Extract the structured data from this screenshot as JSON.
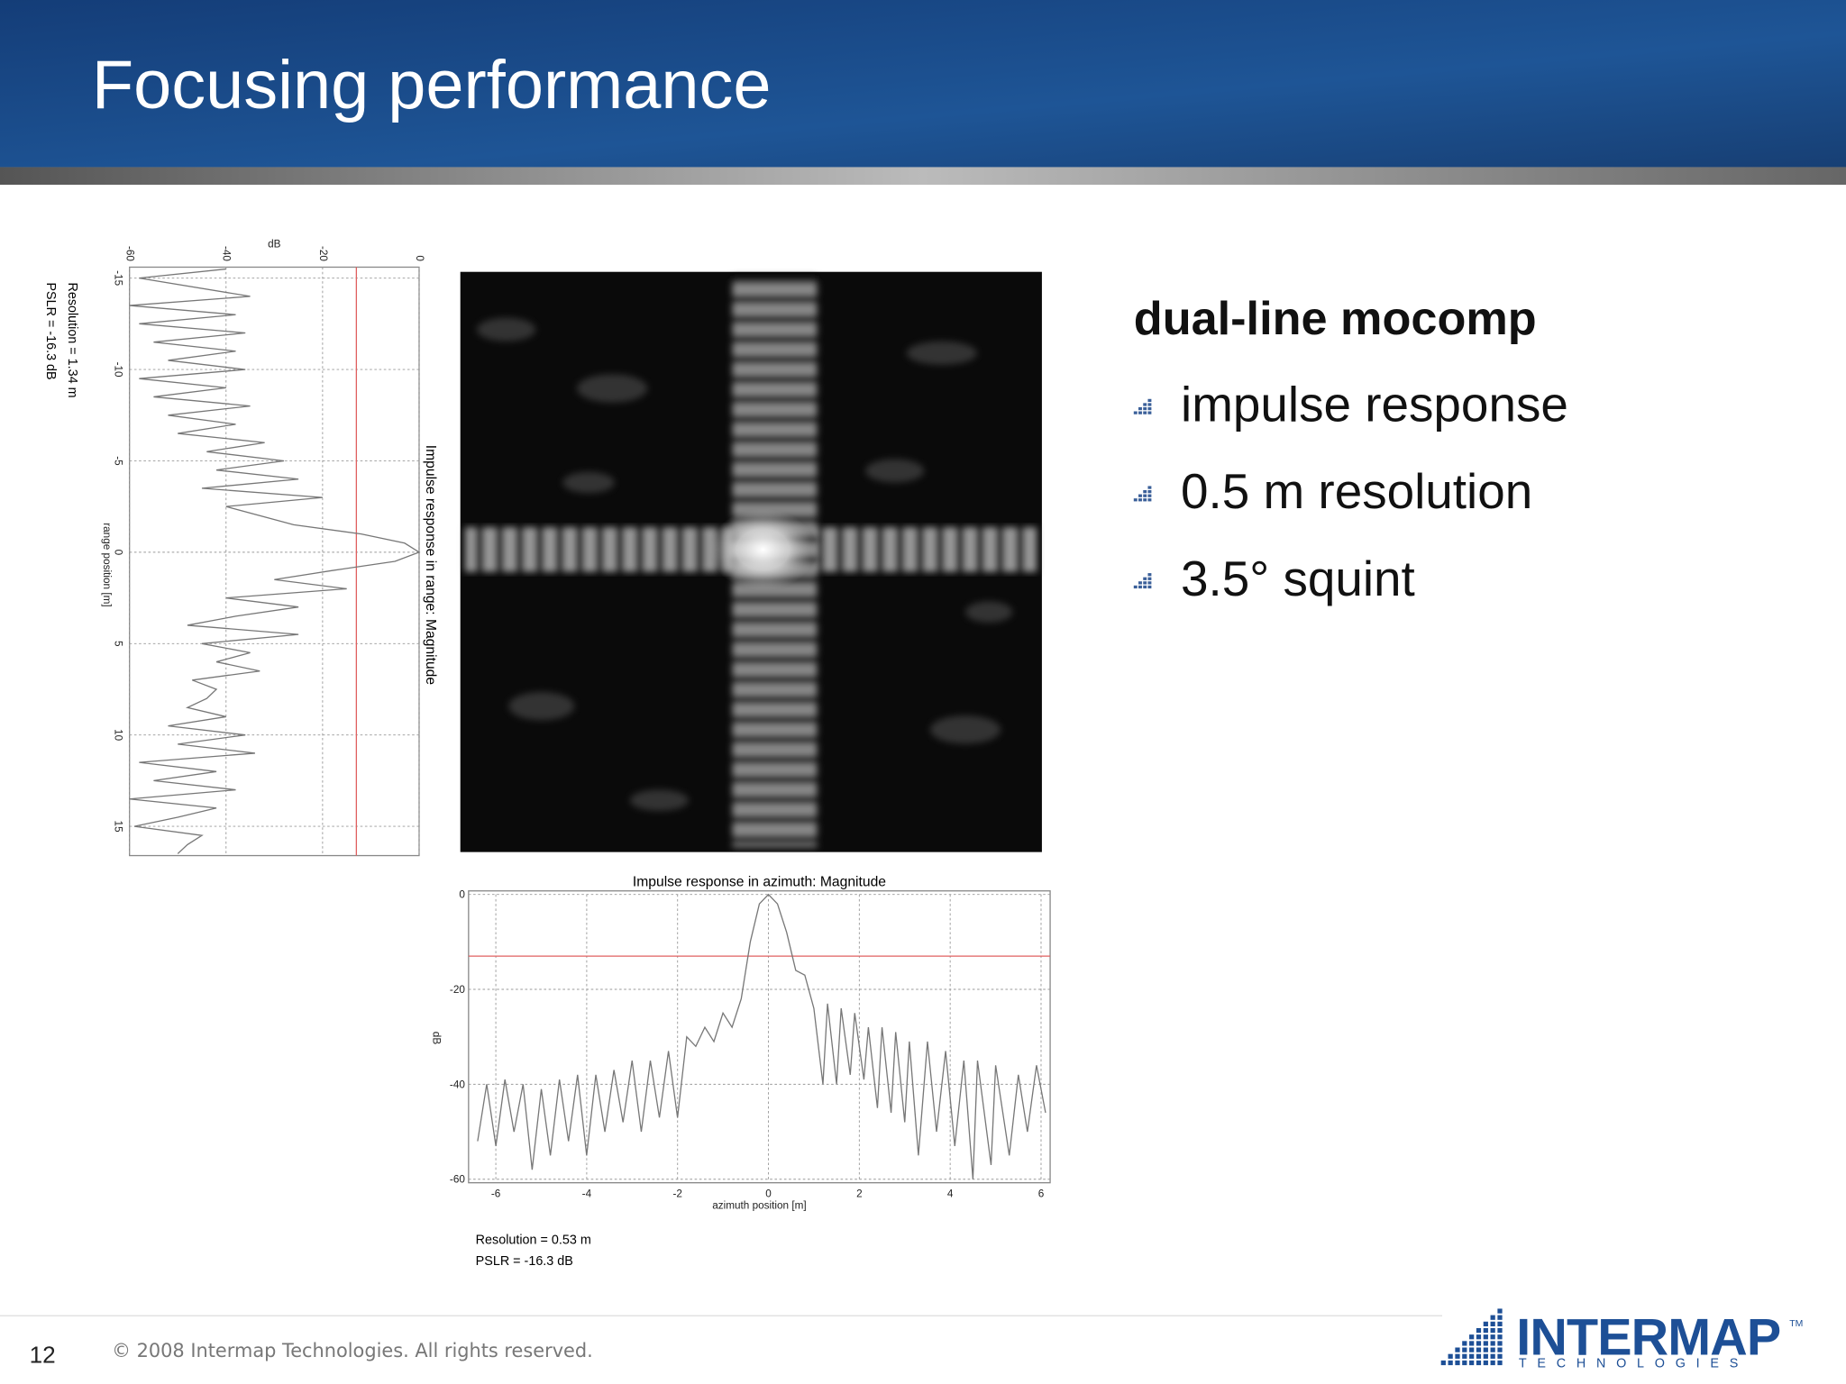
{
  "header": {
    "title": "Focusing performance"
  },
  "bullets": {
    "heading": "dual-line mocomp",
    "items": [
      "impulse response",
      "0.5 m resolution",
      "3.5° squint"
    ]
  },
  "footer": {
    "page": "12",
    "copyright": "© 2008 Intermap Technologies. All rights reserved.",
    "logo": "INTERMAP",
    "logo_sub": "TECHNOLOGIES",
    "trademark": "TM"
  },
  "chart_data": [
    {
      "type": "line",
      "rotated": true,
      "title": "Impulse response in range: Magnitude",
      "xlabel": "range position [m]",
      "ylabel": "dB",
      "xlim": [
        -15.6,
        16.6
      ],
      "ylim": [
        -60,
        0
      ],
      "xticks": [
        -15,
        -10,
        -5,
        0,
        5,
        10,
        15
      ],
      "yticks": [
        -60,
        -40,
        -20,
        0
      ],
      "threshold": -13,
      "threshold_color": "#e06060",
      "color": "#777777",
      "grid": true,
      "annotations": [
        "Resolution = 1.34 m",
        "PSLR = -16.3 dB"
      ],
      "x": [
        -15.5,
        -15,
        -14,
        -13.5,
        -13,
        -12.5,
        -12,
        -11.5,
        -11,
        -10.5,
        -10,
        -9.5,
        -9,
        -8.5,
        -8,
        -7.5,
        -7,
        -6.5,
        -6,
        -5.5,
        -5,
        -4.5,
        -4,
        -3.5,
        -3,
        -2.5,
        -1.5,
        -1,
        -0.5,
        0,
        0.5,
        1,
        1.5,
        2,
        2.5,
        3,
        3.5,
        4,
        4.5,
        5,
        5.5,
        6,
        6.5,
        7,
        7.5,
        8,
        8.5,
        9,
        9.5,
        10,
        10.5,
        11,
        11.5,
        12,
        12.5,
        13,
        13.5,
        14,
        14.5,
        15,
        15.5,
        16,
        16.5
      ],
      "values": [
        -40,
        -58,
        -35,
        -60,
        -38,
        -58,
        -36,
        -55,
        -38,
        -52,
        -36,
        -58,
        -40,
        -55,
        -35,
        -52,
        -38,
        -50,
        -32,
        -44,
        -28,
        -42,
        -25,
        -45,
        -20,
        -40,
        -26,
        -12,
        -3,
        0,
        -5,
        -18,
        -30,
        -15,
        -40,
        -25,
        -38,
        -48,
        -25,
        -45,
        -35,
        -42,
        -33,
        -47,
        -42,
        -44,
        -48,
        -40,
        -52,
        -36,
        -50,
        -34,
        -58,
        -42,
        -55,
        -38,
        -60,
        -42,
        -50,
        -59,
        -45,
        -48,
        -50
      ]
    },
    {
      "type": "line",
      "title": "Impulse response in azimuth: Magnitude",
      "xlabel": "azimuth position [m]",
      "ylabel": "dB",
      "xlim": [
        -6.6,
        6.2
      ],
      "ylim": [
        -60,
        0
      ],
      "xticks": [
        -6,
        -4,
        -2,
        0,
        2,
        4,
        6
      ],
      "yticks": [
        0,
        -20,
        -40,
        -60
      ],
      "threshold": -13,
      "threshold_color": "#e06060",
      "color": "#777777",
      "grid": true,
      "annotations": [
        "Resolution = 0.53 m",
        "PSLR = -16.3 dB"
      ],
      "x": [
        -6.4,
        -6.2,
        -6.0,
        -5.8,
        -5.6,
        -5.4,
        -5.2,
        -5.0,
        -4.8,
        -4.6,
        -4.4,
        -4.2,
        -4.0,
        -3.8,
        -3.6,
        -3.4,
        -3.2,
        -3.0,
        -2.8,
        -2.6,
        -2.4,
        -2.2,
        -2.0,
        -1.8,
        -1.6,
        -1.4,
        -1.2,
        -1.0,
        -0.8,
        -0.6,
        -0.4,
        -0.2,
        0,
        0.2,
        0.4,
        0.6,
        0.8,
        1.0,
        1.2,
        1.3,
        1.5,
        1.6,
        1.8,
        1.9,
        2.1,
        2.2,
        2.4,
        2.5,
        2.7,
        2.8,
        3.0,
        3.1,
        3.3,
        3.5,
        3.7,
        3.9,
        4.1,
        4.3,
        4.5,
        4.6,
        4.9,
        5.0,
        5.3,
        5.5,
        5.7,
        5.9,
        6.1
      ],
      "values": [
        -52,
        -40,
        -53,
        -39,
        -50,
        -40,
        -58,
        -41,
        -55,
        -39,
        -52,
        -38,
        -55,
        -38,
        -50,
        -37,
        -48,
        -35,
        -50,
        -35,
        -47,
        -33,
        -47,
        -30,
        -32,
        -28,
        -31,
        -25,
        -28,
        -22,
        -10,
        -2,
        0,
        -2,
        -8,
        -16,
        -17,
        -24,
        -40,
        -23,
        -40,
        -24,
        -38,
        -25,
        -39,
        -28,
        -45,
        -28,
        -46,
        -29,
        -48,
        -31,
        -55,
        -31,
        -50,
        -33,
        -53,
        -35,
        -60,
        -35,
        -57,
        -36,
        -55,
        -38,
        -50,
        -36,
        -46
      ]
    }
  ]
}
